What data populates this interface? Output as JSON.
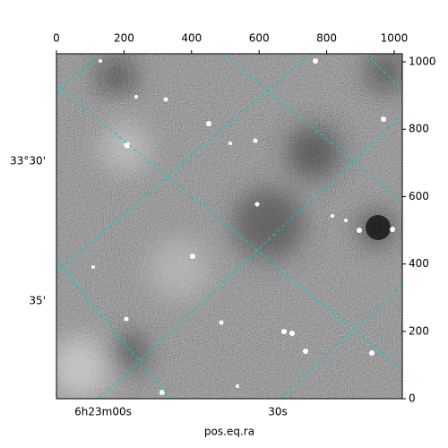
{
  "chart_data": {
    "type": "image",
    "xlabel": "pos.eq.ra",
    "xlim": [
      0,
      1024
    ],
    "xticks": [
      0,
      200,
      400,
      600,
      800,
      1000
    ],
    "ylim": [
      0,
      1024
    ],
    "yticks": [
      0,
      200,
      400,
      600,
      800,
      1000
    ],
    "ra_tick_labels": [
      "6h23m00s",
      "30s"
    ],
    "dec_tick_labels": [
      "33°30'",
      "35'"
    ],
    "grid_color": "#00d0d0"
  }
}
